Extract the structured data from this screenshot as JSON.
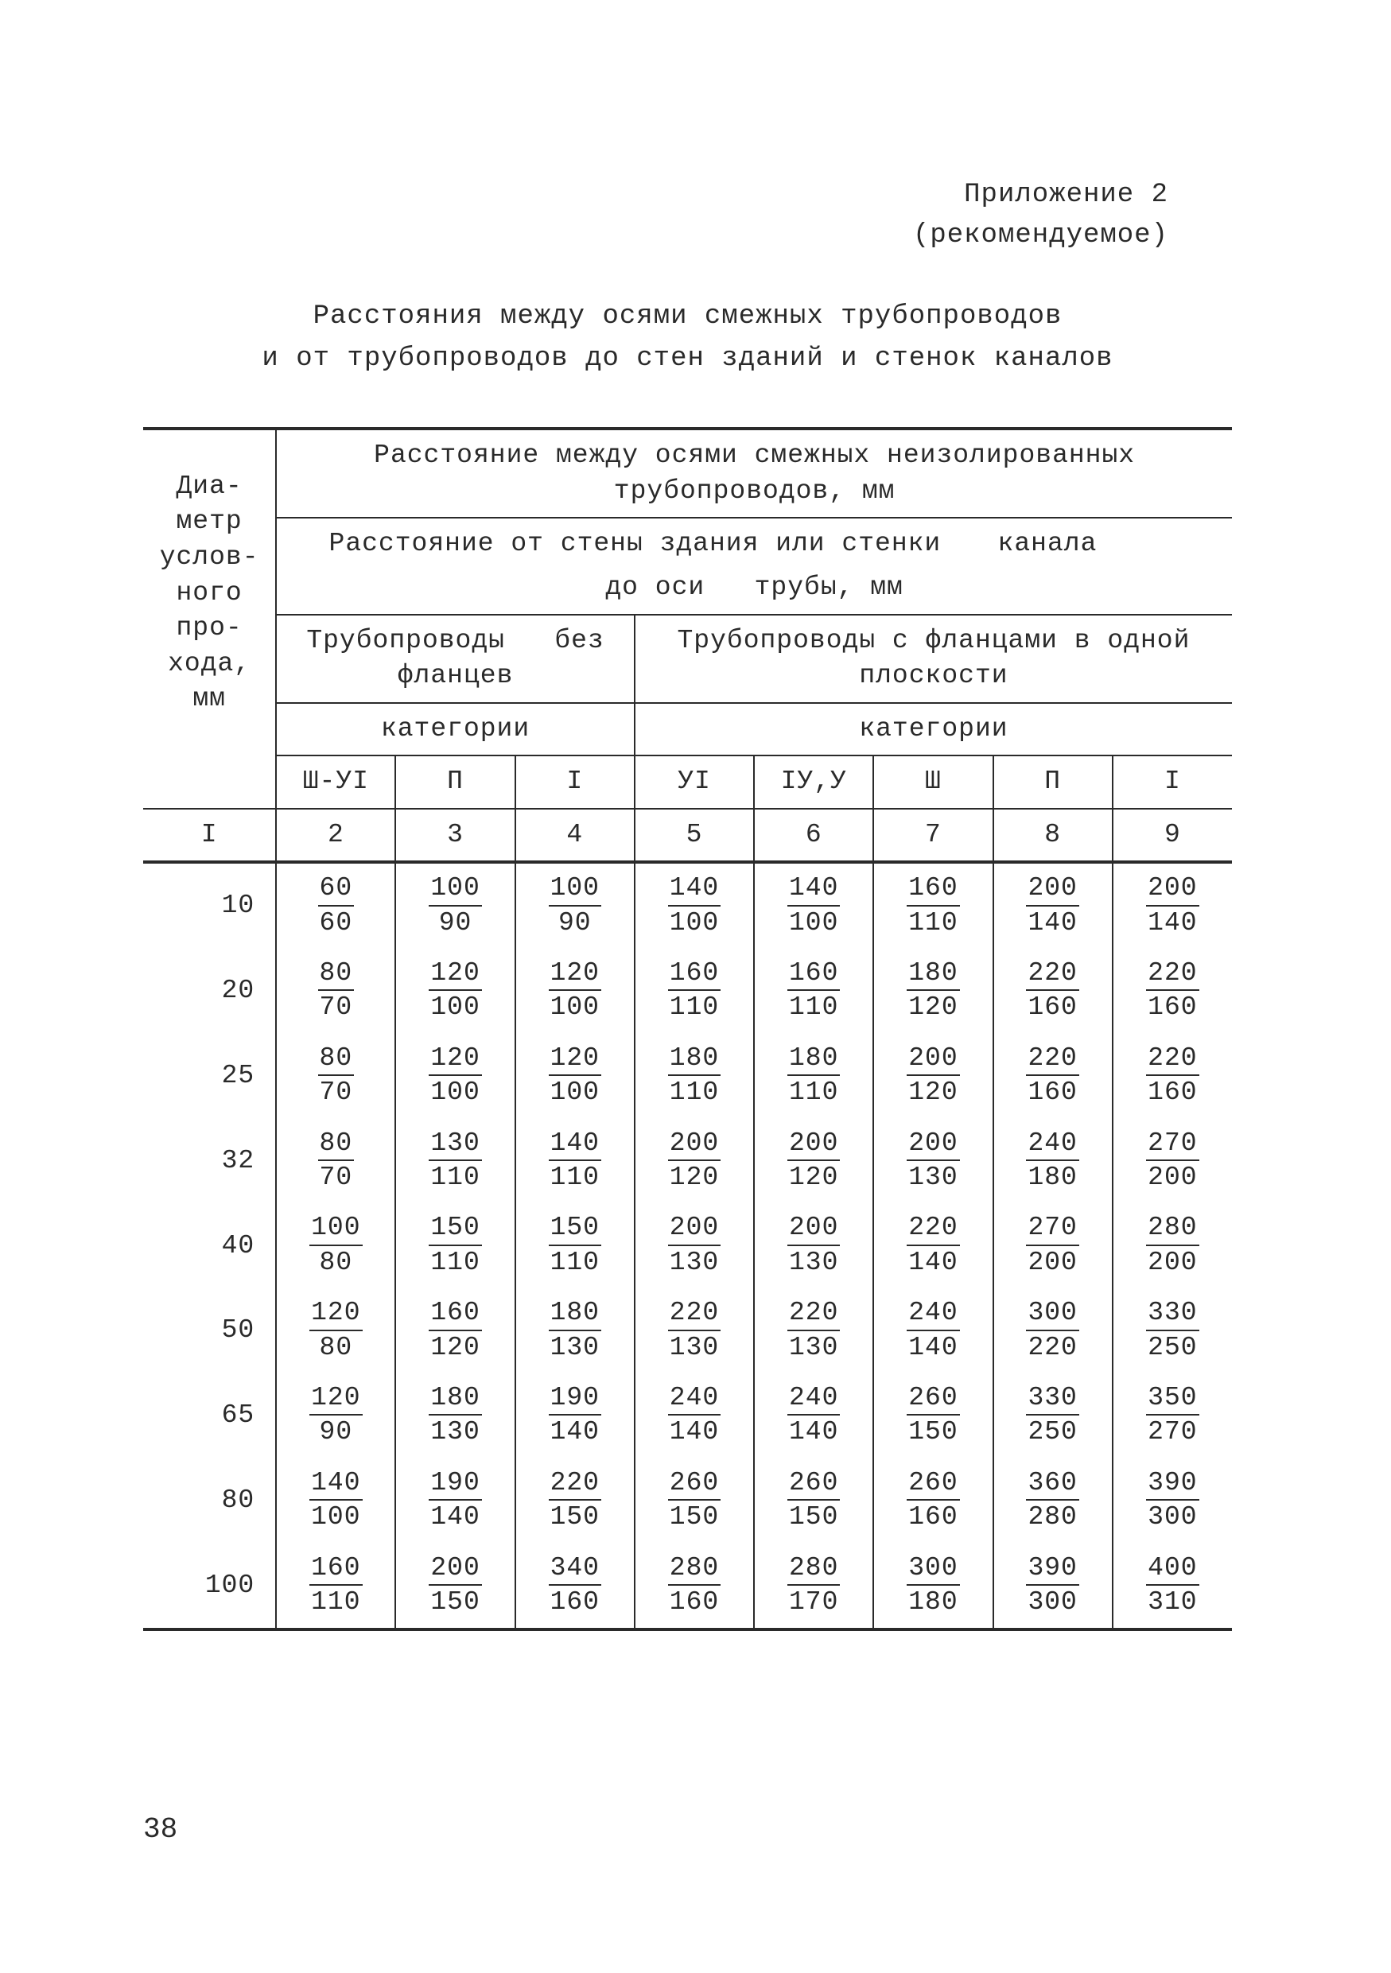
{
  "theme": {
    "background_color": "#ffffff",
    "text_color": "#2a2a2a",
    "rule_color": "#2a2a2a",
    "font_family": "Courier New, monospace",
    "base_fontsize_pt": 25
  },
  "appendix_label": "Приложение 2",
  "appendix_note": "(рекомендуемое)",
  "title_line1": "Расстояния между осями смежных трубопроводов",
  "title_line2": "и от трубопроводов до стен зданий и стенок каналов",
  "rowhead": {
    "l1": "Диа-",
    "l2": "метр",
    "l3": "услов-",
    "l4": "ного",
    "l5": "про-",
    "l6": "хода,",
    "l7": "мм"
  },
  "header_top": "Расстояние между осями смежных неизолированных трубопроводов, мм",
  "header_sub_a": "Расстояние от стены здания или стенки",
  "header_sub_b": "канала",
  "header_sub_c": "до оси   трубы, мм",
  "group_left": "Трубопроводы   без фланцев",
  "group_right": "Трубопроводы с фланцами в одной плоскости",
  "categories_label": "категории",
  "cols": {
    "c2": "Ш-УI",
    "c3": "П",
    "c4": "I",
    "c5": "УI",
    "c6": "IУ,У",
    "c7": "Ш",
    "c8": "П",
    "c9": "I"
  },
  "numrow": {
    "n1": "I",
    "n2": "2",
    "n3": "3",
    "n4": "4",
    "n5": "5",
    "n6": "6",
    "n7": "7",
    "n8": "8",
    "n9": "9"
  },
  "data": [
    {
      "dia": "10",
      "c2n": "60",
      "c2d": "60",
      "c3n": "100",
      "c3d": "90",
      "c4n": "100",
      "c4d": "90",
      "c5n": "140",
      "c5d": "100",
      "c6n": "140",
      "c6d": "100",
      "c7n": "160",
      "c7d": "110",
      "c8n": "200",
      "c8d": "140",
      "c9n": "200",
      "c9d": "140"
    },
    {
      "dia": "20",
      "c2n": "80",
      "c2d": "70",
      "c3n": "120",
      "c3d": "100",
      "c4n": "120",
      "c4d": "100",
      "c5n": "160",
      "c5d": "110",
      "c6n": "160",
      "c6d": "110",
      "c7n": "180",
      "c7d": "120",
      "c8n": "220",
      "c8d": "160",
      "c9n": "220",
      "c9d": "160"
    },
    {
      "dia": "25",
      "c2n": "80",
      "c2d": "70",
      "c3n": "120",
      "c3d": "100",
      "c4n": "120",
      "c4d": "100",
      "c5n": "180",
      "c5d": "110",
      "c6n": "180",
      "c6d": "110",
      "c7n": "200",
      "c7d": "120",
      "c8n": "220",
      "c8d": "160",
      "c9n": "220",
      "c9d": "160"
    },
    {
      "dia": "32",
      "c2n": "80",
      "c2d": "70",
      "c3n": "130",
      "c3d": "110",
      "c4n": "140",
      "c4d": "110",
      "c5n": "200",
      "c5d": "120",
      "c6n": "200",
      "c6d": "120",
      "c7n": "200",
      "c7d": "130",
      "c8n": "240",
      "c8d": "180",
      "c9n": "270",
      "c9d": "200"
    },
    {
      "dia": "40",
      "c2n": "100",
      "c2d": "80",
      "c3n": "150",
      "c3d": "110",
      "c4n": "150",
      "c4d": "110",
      "c5n": "200",
      "c5d": "130",
      "c6n": "200",
      "c6d": "130",
      "c7n": "220",
      "c7d": "140",
      "c8n": "270",
      "c8d": "200",
      "c9n": "280",
      "c9d": "200"
    },
    {
      "dia": "50",
      "c2n": "120",
      "c2d": "80",
      "c3n": "160",
      "c3d": "120",
      "c4n": "180",
      "c4d": "130",
      "c5n": "220",
      "c5d": "130",
      "c6n": "220",
      "c6d": "130",
      "c7n": "240",
      "c7d": "140",
      "c8n": "300",
      "c8d": "220",
      "c9n": "330",
      "c9d": "250"
    },
    {
      "dia": "65",
      "c2n": "120",
      "c2d": "90",
      "c3n": "180",
      "c3d": "130",
      "c4n": "190",
      "c4d": "140",
      "c5n": "240",
      "c5d": "140",
      "c6n": "240",
      "c6d": "140",
      "c7n": "260",
      "c7d": "150",
      "c8n": "330",
      "c8d": "250",
      "c9n": "350",
      "c9d": "270"
    },
    {
      "dia": "80",
      "c2n": "140",
      "c2d": "100",
      "c3n": "190",
      "c3d": "140",
      "c4n": "220",
      "c4d": "150",
      "c5n": "260",
      "c5d": "150",
      "c6n": "260",
      "c6d": "150",
      "c7n": "260",
      "c7d": "160",
      "c8n": "360",
      "c8d": "280",
      "c9n": "390",
      "c9d": "300"
    },
    {
      "dia": "100",
      "c2n": "160",
      "c2d": "110",
      "c3n": "200",
      "c3d": "150",
      "c4n": "340",
      "c4d": "160",
      "c5n": "280",
      "c5d": "160",
      "c6n": "280",
      "c6d": "170",
      "c7n": "300",
      "c7d": "180",
      "c8n": "390",
      "c8d": "300",
      "c9n": "400",
      "c9d": "310"
    }
  ],
  "page_number": "38"
}
